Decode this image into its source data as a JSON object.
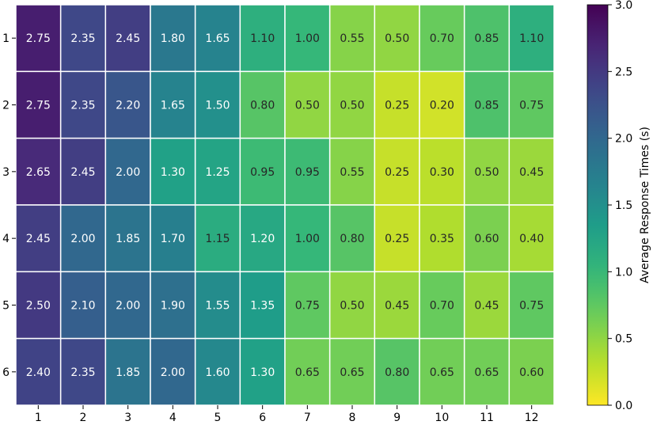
{
  "chart_data": {
    "type": "heatmap",
    "title": "",
    "xlabel": "",
    "ylabel": "",
    "x_categories": [
      "1",
      "2",
      "3",
      "4",
      "5",
      "6",
      "7",
      "8",
      "9",
      "10",
      "11",
      "12"
    ],
    "y_categories": [
      "1",
      "2",
      "3",
      "4",
      "5",
      "6"
    ],
    "values": [
      [
        2.75,
        2.35,
        2.45,
        1.8,
        1.65,
        1.1,
        1.0,
        0.55,
        0.5,
        0.7,
        0.85,
        1.1
      ],
      [
        2.75,
        2.35,
        2.2,
        1.65,
        1.5,
        0.8,
        0.5,
        0.5,
        0.25,
        0.2,
        0.85,
        0.75
      ],
      [
        2.65,
        2.45,
        2.0,
        1.3,
        1.25,
        0.95,
        0.95,
        0.55,
        0.25,
        0.3,
        0.5,
        0.45
      ],
      [
        2.45,
        2.0,
        1.85,
        1.7,
        1.15,
        1.2,
        1.0,
        0.8,
        0.25,
        0.35,
        0.6,
        0.4
      ],
      [
        2.5,
        2.1,
        2.0,
        1.9,
        1.55,
        1.35,
        0.75,
        0.5,
        0.45,
        0.7,
        0.45,
        0.75
      ],
      [
        2.4,
        2.35,
        1.85,
        2.0,
        1.6,
        1.3,
        0.65,
        0.65,
        0.8,
        0.65,
        0.65,
        0.6
      ]
    ],
    "value_format": "2 decimals",
    "colormap": "viridis_r",
    "vmin": 0.0,
    "vmax": 3.0,
    "grid": false,
    "cell_border_color": "#ffffff",
    "colorbar": {
      "label": "Average Response Times (s)",
      "ticks": [
        "0.0",
        "0.5",
        "1.0",
        "1.5",
        "2.0",
        "2.5",
        "3.0"
      ],
      "placement": "right"
    }
  }
}
